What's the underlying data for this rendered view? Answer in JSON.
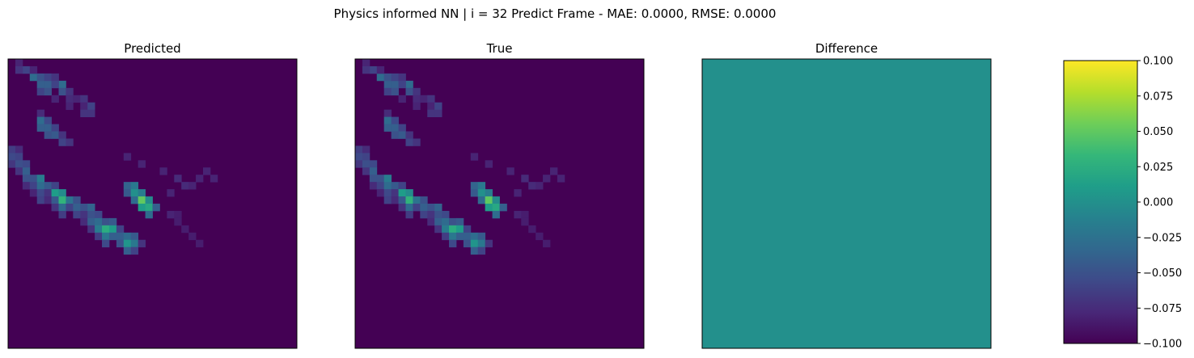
{
  "figure": {
    "suptitle": "Physics informed NN | i = 32 Predict Frame - MAE: 0.0000, RMSE: 0.0000"
  },
  "colormap": {
    "name": "viridis",
    "stops": [
      "#440154",
      "#482878",
      "#3e4a89",
      "#31688e",
      "#26828e",
      "#1f9e89",
      "#35b779",
      "#6ece58",
      "#b5de2b",
      "#fde725"
    ]
  },
  "chart_data": [
    {
      "type": "heatmap",
      "title": "Predicted",
      "grid_size": [
        40,
        40
      ],
      "value_range": [
        0,
        1
      ],
      "background_value": 0,
      "cells": [
        [
          12,
          0,
          0.18
        ],
        [
          13,
          0,
          0.22
        ],
        [
          14,
          0,
          0.16
        ],
        [
          12,
          1,
          0.12
        ],
        [
          13,
          1,
          0.2
        ],
        [
          14,
          1,
          0.24
        ],
        [
          15,
          1,
          0.15
        ],
        [
          14,
          2,
          0.22
        ],
        [
          15,
          2,
          0.3
        ],
        [
          16,
          2,
          0.25
        ],
        [
          17,
          2,
          0.12
        ],
        [
          16,
          3,
          0.25
        ],
        [
          17,
          3,
          0.2
        ],
        [
          18,
          3,
          0.1
        ],
        [
          16,
          4,
          0.42
        ],
        [
          17,
          4,
          0.35
        ],
        [
          18,
          4,
          0.22
        ],
        [
          19,
          4,
          0.2
        ],
        [
          17,
          5,
          0.28
        ],
        [
          18,
          5,
          0.15
        ],
        [
          19,
          5,
          0.12
        ],
        [
          17,
          6,
          0.2
        ],
        [
          18,
          6,
          0.55
        ],
        [
          19,
          6,
          0.28
        ],
        [
          20,
          6,
          0.15
        ],
        [
          18,
          7,
          0.48
        ],
        [
          19,
          7,
          0.65
        ],
        [
          20,
          7,
          0.35
        ],
        [
          21,
          7,
          0.18
        ],
        [
          19,
          8,
          0.38
        ],
        [
          20,
          8,
          0.2
        ],
        [
          19,
          9,
          0.25
        ],
        [
          20,
          9,
          0.3
        ],
        [
          21,
          9,
          0.2
        ],
        [
          20,
          10,
          0.25
        ],
        [
          21,
          10,
          0.15
        ],
        [
          22,
          10,
          0.12
        ],
        [
          20,
          11,
          0.32
        ],
        [
          21,
          11,
          0.25
        ],
        [
          22,
          11,
          0.3
        ],
        [
          23,
          11,
          0.15
        ],
        [
          21,
          12,
          0.22
        ],
        [
          22,
          12,
          0.35
        ],
        [
          23,
          12,
          0.42
        ],
        [
          24,
          12,
          0.18
        ],
        [
          22,
          13,
          0.25
        ],
        [
          23,
          13,
          0.62
        ],
        [
          24,
          13,
          0.4
        ],
        [
          25,
          13,
          0.22
        ],
        [
          22,
          14,
          0.28
        ],
        [
          23,
          14,
          0.55
        ],
        [
          24,
          14,
          0.3
        ],
        [
          23,
          15,
          0.2
        ],
        [
          24,
          15,
          0.3
        ],
        [
          25,
          15,
          0.25
        ],
        [
          24,
          16,
          0.35
        ],
        [
          25,
          16,
          0.52
        ],
        [
          26,
          16,
          0.3
        ],
        [
          24,
          17,
          0.28
        ],
        [
          25,
          17,
          0.4
        ],
        [
          26,
          17,
          0.2
        ],
        [
          25,
          18,
          0.15
        ],
        [
          17,
          16,
          0.32
        ],
        [
          18,
          16,
          0.28
        ],
        [
          17,
          17,
          0.4
        ],
        [
          18,
          17,
          0.5
        ],
        [
          19,
          17,
          0.35
        ],
        [
          18,
          18,
          0.42
        ],
        [
          19,
          18,
          0.75
        ],
        [
          20,
          18,
          0.55
        ],
        [
          19,
          19,
          0.48
        ],
        [
          20,
          19,
          0.6
        ],
        [
          21,
          19,
          0.35
        ],
        [
          20,
          20,
          0.3
        ],
        [
          7,
          4,
          0.12
        ],
        [
          8,
          4,
          0.35
        ],
        [
          9,
          4,
          0.3
        ],
        [
          8,
          5,
          0.22
        ],
        [
          9,
          5,
          0.3
        ],
        [
          10,
          5,
          0.25
        ],
        [
          9,
          6,
          0.2
        ],
        [
          10,
          6,
          0.28
        ],
        [
          10,
          7,
          0.15
        ],
        [
          11,
          7,
          0.2
        ],
        [
          11,
          8,
          0.15
        ],
        [
          3,
          7,
          0.35
        ],
        [
          4,
          7,
          0.25
        ],
        [
          4,
          8,
          0.15
        ],
        [
          5,
          8,
          0.12
        ],
        [
          1,
          2,
          0.2
        ],
        [
          2,
          3,
          0.35
        ],
        [
          3,
          4,
          0.3
        ],
        [
          4,
          4,
          0.2
        ],
        [
          2,
          4,
          0.25
        ],
        [
          3,
          5,
          0.3
        ],
        [
          4,
          5,
          0.25
        ],
        [
          0,
          1,
          0.1
        ],
        [
          1,
          1,
          0.15
        ],
        [
          1,
          3,
          0.1
        ],
        [
          2,
          5,
          0.2
        ],
        [
          2,
          6,
          0.15
        ],
        [
          3,
          6,
          0.2
        ],
        [
          5,
          6,
          0.1
        ],
        [
          5,
          9,
          0.1
        ],
        [
          6,
          8,
          0.1
        ],
        [
          5,
          10,
          0.15
        ],
        [
          6,
          10,
          0.1
        ],
        [
          7,
          10,
          0.15
        ],
        [
          6,
          11,
          0.2
        ],
        [
          7,
          11,
          0.15
        ],
        [
          13,
          16,
          0.1
        ],
        [
          14,
          18,
          0.1
        ],
        [
          15,
          21,
          0.1
        ],
        [
          16,
          26,
          0.1
        ],
        [
          16,
          23,
          0.12
        ],
        [
          15,
          27,
          0.1
        ],
        [
          16,
          28,
          0.1
        ],
        [
          17,
          24,
          0.12
        ],
        [
          17,
          25,
          0.1
        ],
        [
          18,
          22,
          0.1
        ],
        [
          21,
          22,
          0.1
        ],
        [
          21,
          23,
          0.08
        ],
        [
          22,
          23,
          0.08
        ],
        [
          23,
          24,
          0.08
        ],
        [
          24,
          25,
          0.08
        ],
        [
          25,
          26,
          0.08
        ]
      ]
    },
    {
      "type": "heatmap",
      "title": "True",
      "grid_size": [
        40,
        40
      ],
      "value_range": [
        0,
        1
      ],
      "background_value": 0,
      "same_as": "Predicted"
    },
    {
      "type": "heatmap",
      "title": "Difference",
      "grid_size": [
        40,
        40
      ],
      "uniform_value": 0.0,
      "value_range": [
        -0.1,
        0.1
      ]
    }
  ],
  "colorbar": {
    "range": [
      -0.1,
      0.1
    ],
    "ticks": [
      0.1,
      0.075,
      0.05,
      0.025,
      0.0,
      -0.025,
      -0.05,
      -0.075,
      -0.1
    ],
    "tick_labels": [
      "0.100",
      "0.075",
      "0.050",
      "0.025",
      "0.000",
      "−0.025",
      "−0.050",
      "−0.075",
      "−0.100"
    ]
  }
}
